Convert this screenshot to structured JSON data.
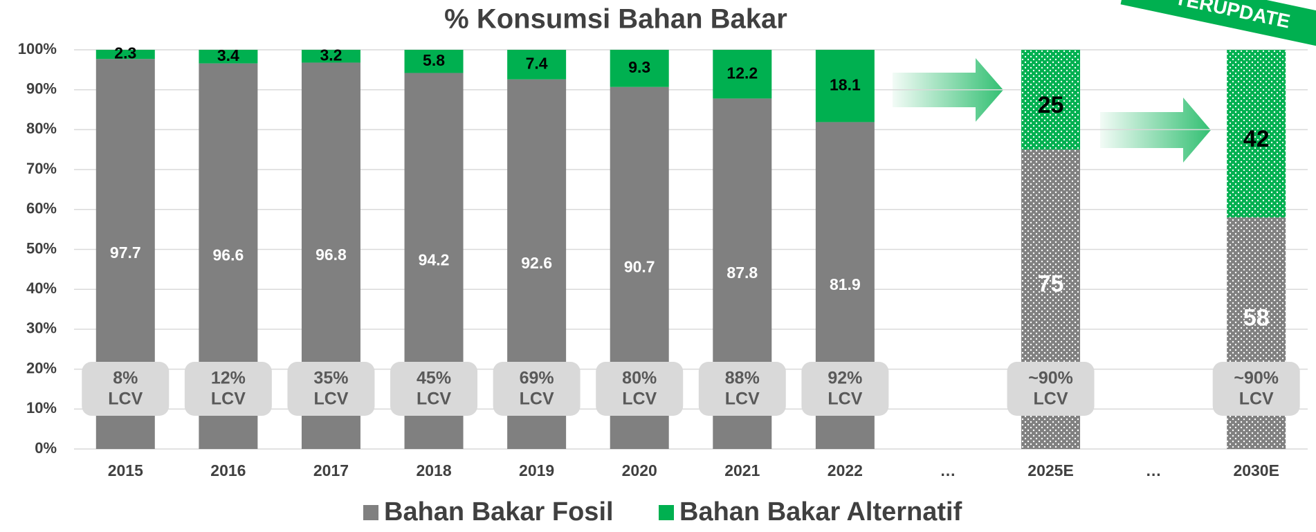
{
  "chart_data": {
    "type": "stacked_bar",
    "title": "% Konsumsi Bahan Bakar",
    "badge": "TERUPDATE",
    "categories": [
      "2015",
      "2016",
      "2017",
      "2018",
      "2019",
      "2020",
      "2021",
      "2022",
      "…",
      "2025E",
      "…",
      "2030E"
    ],
    "series": [
      {
        "name": "Bahan Bakar Fosil",
        "color": "#808080",
        "values": [
          97.7,
          96.6,
          96.8,
          94.2,
          92.6,
          90.7,
          87.8,
          81.9,
          null,
          75,
          null,
          58
        ]
      },
      {
        "name": "Bahan Bakar Alternatif",
        "color": "#00b050",
        "values": [
          2.3,
          3.4,
          3.2,
          5.8,
          7.4,
          9.3,
          12.2,
          18.1,
          null,
          25,
          null,
          42
        ]
      }
    ],
    "dotted": [
      false,
      false,
      false,
      false,
      false,
      false,
      false,
      false,
      false,
      true,
      false,
      true
    ],
    "lcv_labels": [
      [
        "8%",
        "LCV"
      ],
      [
        "12%",
        "LCV"
      ],
      [
        "35%",
        "LCV"
      ],
      [
        "45%",
        "LCV"
      ],
      [
        "69%",
        "LCV"
      ],
      [
        "80%",
        "LCV"
      ],
      [
        "88%",
        "LCV"
      ],
      [
        "92%",
        "LCV"
      ],
      null,
      [
        "~90%",
        "LCV"
      ],
      null,
      [
        "~90%",
        "LCV"
      ]
    ],
    "ylim": [
      0,
      100
    ],
    "yticks": [
      {
        "value": 0,
        "label": "0%"
      },
      {
        "value": 10,
        "label": "10%"
      },
      {
        "value": 20,
        "label": "20%"
      },
      {
        "value": 30,
        "label": "30%"
      },
      {
        "value": 40,
        "label": "40%"
      },
      {
        "value": 50,
        "label": "50%"
      },
      {
        "value": 60,
        "label": "60%"
      },
      {
        "value": 70,
        "label": "70%"
      },
      {
        "value": 80,
        "label": "80%"
      },
      {
        "value": 90,
        "label": "90%"
      },
      {
        "value": 100,
        "label": "100%"
      }
    ],
    "grid": true,
    "legend": "bottom"
  }
}
